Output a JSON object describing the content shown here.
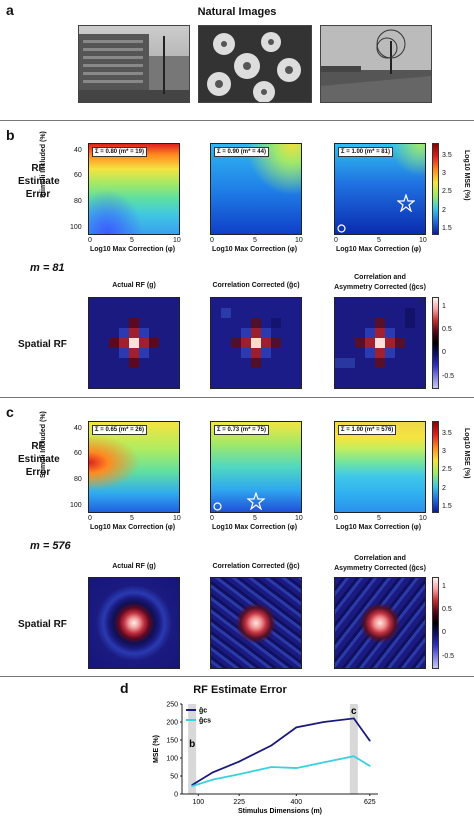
{
  "figure": {
    "a": {
      "letter": "a",
      "title": "Natural Images",
      "images": [
        "building-photo",
        "flowers-photo",
        "tree-landscape-photo"
      ]
    },
    "b": {
      "letter": "b",
      "row_label_line1": "RF",
      "row_label_line2": "Estimate",
      "row_label_line3": "Error",
      "ylabel": "Stimuli Included (%)",
      "xlabel": "Log10 Max Correction (φ)",
      "heatmaps": [
        {
          "label": "Σ = 0.80 (m* = 19)"
        },
        {
          "label": "Σ = 0.90 (m* = 44)"
        },
        {
          "label": "Σ = 1.00 (m* = 81)"
        }
      ],
      "yticks": [
        "40",
        "60",
        "80",
        "100"
      ],
      "xticks": [
        "0",
        "5",
        "10"
      ],
      "colorbar_label": "Log10 MSE (%)",
      "colorbar_ticks": [
        "3.5",
        "3",
        "2.5",
        "2",
        "1.5"
      ],
      "m_label": "m = 81",
      "spatial_label": "Spatial RF",
      "rf_titles": [
        "Actual RF (g)",
        "Correlation Corrected (ĝc)",
        "Correlation and",
        "Asymmetry Corrected (ĝcs)"
      ],
      "rf_colorbar_ticks": [
        "1",
        "0.5",
        "0",
        "-0.5"
      ]
    },
    "c": {
      "letter": "c",
      "heatmaps": [
        {
          "label": "Σ = 0.65 (m* = 26)"
        },
        {
          "label": "Σ = 0.73 (m* = 75)"
        },
        {
          "label": "Σ = 1.00 (m* = 576)"
        }
      ],
      "m_label": "m = 576"
    },
    "d": {
      "letter": "d",
      "title": "RF Estimate Error",
      "xlabel": "Stimulus Dimensions (m)",
      "ylabel": "MSE (%)",
      "mark_b": "b",
      "mark_c": "c"
    }
  },
  "chart_data": {
    "type": "line",
    "title": "RF Estimate Error",
    "xlabel": "Stimulus Dimensions (m)",
    "ylabel": "MSE (%)",
    "x": [
      81,
      144,
      225,
      324,
      400,
      484,
      576,
      625
    ],
    "series": [
      {
        "name": "ĝc",
        "color": "#1a1a7a",
        "values": [
          25,
          60,
          90,
          135,
          185,
          200,
          210,
          148
        ]
      },
      {
        "name": "ĝcs",
        "color": "#3ad0e0",
        "values": [
          22,
          40,
          55,
          75,
          72,
          88,
          105,
          78
        ]
      }
    ],
    "xticks": [
      "100",
      "225",
      "400",
      "625"
    ],
    "xtick_values": [
      100,
      225,
      400,
      625
    ],
    "yticks": [
      "0",
      "50",
      "100",
      "150",
      "200",
      "250"
    ],
    "ylim": [
      0,
      250
    ],
    "xlim": [
      50,
      650
    ],
    "legend_placement": "top-left",
    "highlight_bands": [
      {
        "label": "b",
        "x": 81
      },
      {
        "label": "c",
        "x": 576
      }
    ]
  }
}
